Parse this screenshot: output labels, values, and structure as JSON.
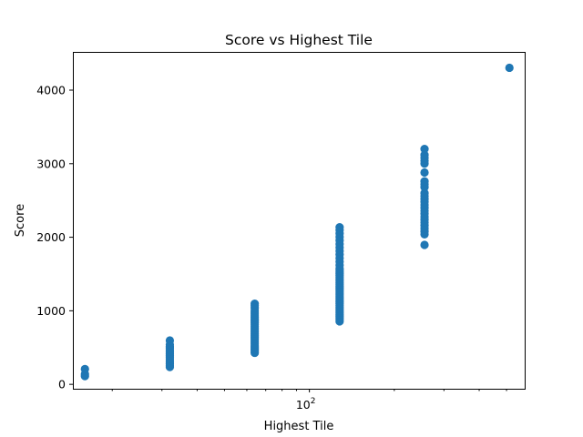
{
  "chart_data": {
    "type": "scatter",
    "title": "Score vs Highest Tile",
    "xlabel": "Highest Tile",
    "ylabel": "Score",
    "x_scale": "log",
    "xlim": [
      14.5,
      580
    ],
    "ylim": [
      -60,
      4520
    ],
    "grid": false,
    "color": "#1f77b4",
    "y_ticks": [
      0,
      1000,
      2000,
      3000,
      4000
    ],
    "x_major_ticks": [
      {
        "value": 100,
        "label": "10",
        "exp": "2"
      }
    ],
    "x_minor_ticks": [
      20,
      30,
      40,
      50,
      60,
      70,
      80,
      90,
      200,
      300,
      400,
      500
    ],
    "points": [
      {
        "x": 16,
        "y": 112
      },
      {
        "x": 16,
        "y": 140
      },
      {
        "x": 16,
        "y": 208
      },
      {
        "x": 32,
        "y": 236
      },
      {
        "x": 32,
        "y": 256
      },
      {
        "x": 32,
        "y": 278
      },
      {
        "x": 32,
        "y": 300
      },
      {
        "x": 32,
        "y": 324
      },
      {
        "x": 32,
        "y": 348
      },
      {
        "x": 32,
        "y": 372
      },
      {
        "x": 32,
        "y": 396
      },
      {
        "x": 32,
        "y": 420
      },
      {
        "x": 32,
        "y": 444
      },
      {
        "x": 32,
        "y": 468
      },
      {
        "x": 32,
        "y": 492
      },
      {
        "x": 32,
        "y": 516
      },
      {
        "x": 32,
        "y": 540
      },
      {
        "x": 32,
        "y": 596
      },
      {
        "x": 64,
        "y": 428
      },
      {
        "x": 64,
        "y": 452
      },
      {
        "x": 64,
        "y": 476
      },
      {
        "x": 64,
        "y": 500
      },
      {
        "x": 64,
        "y": 524
      },
      {
        "x": 64,
        "y": 548
      },
      {
        "x": 64,
        "y": 572
      },
      {
        "x": 64,
        "y": 596
      },
      {
        "x": 64,
        "y": 620
      },
      {
        "x": 64,
        "y": 644
      },
      {
        "x": 64,
        "y": 668
      },
      {
        "x": 64,
        "y": 692
      },
      {
        "x": 64,
        "y": 716
      },
      {
        "x": 64,
        "y": 740
      },
      {
        "x": 64,
        "y": 764
      },
      {
        "x": 64,
        "y": 788
      },
      {
        "x": 64,
        "y": 812
      },
      {
        "x": 64,
        "y": 836
      },
      {
        "x": 64,
        "y": 860
      },
      {
        "x": 64,
        "y": 884
      },
      {
        "x": 64,
        "y": 908
      },
      {
        "x": 64,
        "y": 932
      },
      {
        "x": 64,
        "y": 956
      },
      {
        "x": 64,
        "y": 980
      },
      {
        "x": 64,
        "y": 1004
      },
      {
        "x": 64,
        "y": 1040
      },
      {
        "x": 64,
        "y": 1072
      },
      {
        "x": 64,
        "y": 1096
      },
      {
        "x": 128,
        "y": 856
      },
      {
        "x": 128,
        "y": 880
      },
      {
        "x": 128,
        "y": 904
      },
      {
        "x": 128,
        "y": 928
      },
      {
        "x": 128,
        "y": 952
      },
      {
        "x": 128,
        "y": 976
      },
      {
        "x": 128,
        "y": 1000
      },
      {
        "x": 128,
        "y": 1024
      },
      {
        "x": 128,
        "y": 1048
      },
      {
        "x": 128,
        "y": 1072
      },
      {
        "x": 128,
        "y": 1096
      },
      {
        "x": 128,
        "y": 1120
      },
      {
        "x": 128,
        "y": 1144
      },
      {
        "x": 128,
        "y": 1168
      },
      {
        "x": 128,
        "y": 1192
      },
      {
        "x": 128,
        "y": 1216
      },
      {
        "x": 128,
        "y": 1240
      },
      {
        "x": 128,
        "y": 1264
      },
      {
        "x": 128,
        "y": 1288
      },
      {
        "x": 128,
        "y": 1312
      },
      {
        "x": 128,
        "y": 1336
      },
      {
        "x": 128,
        "y": 1360
      },
      {
        "x": 128,
        "y": 1384
      },
      {
        "x": 128,
        "y": 1408
      },
      {
        "x": 128,
        "y": 1432
      },
      {
        "x": 128,
        "y": 1456
      },
      {
        "x": 128,
        "y": 1480
      },
      {
        "x": 128,
        "y": 1504
      },
      {
        "x": 128,
        "y": 1528
      },
      {
        "x": 128,
        "y": 1552
      },
      {
        "x": 128,
        "y": 1576
      },
      {
        "x": 128,
        "y": 1620
      },
      {
        "x": 128,
        "y": 1668
      },
      {
        "x": 128,
        "y": 1716
      },
      {
        "x": 128,
        "y": 1764
      },
      {
        "x": 128,
        "y": 1812
      },
      {
        "x": 128,
        "y": 1860
      },
      {
        "x": 128,
        "y": 1908
      },
      {
        "x": 128,
        "y": 1956
      },
      {
        "x": 128,
        "y": 2004
      },
      {
        "x": 128,
        "y": 2052
      },
      {
        "x": 128,
        "y": 2100
      },
      {
        "x": 128,
        "y": 2136
      },
      {
        "x": 256,
        "y": 1896
      },
      {
        "x": 256,
        "y": 2040
      },
      {
        "x": 256,
        "y": 2080
      },
      {
        "x": 256,
        "y": 2120
      },
      {
        "x": 256,
        "y": 2160
      },
      {
        "x": 256,
        "y": 2200
      },
      {
        "x": 256,
        "y": 2240
      },
      {
        "x": 256,
        "y": 2280
      },
      {
        "x": 256,
        "y": 2320
      },
      {
        "x": 256,
        "y": 2360
      },
      {
        "x": 256,
        "y": 2400
      },
      {
        "x": 256,
        "y": 2440
      },
      {
        "x": 256,
        "y": 2480
      },
      {
        "x": 256,
        "y": 2520
      },
      {
        "x": 256,
        "y": 2560
      },
      {
        "x": 256,
        "y": 2600
      },
      {
        "x": 256,
        "y": 2680
      },
      {
        "x": 256,
        "y": 2720
      },
      {
        "x": 256,
        "y": 2760
      },
      {
        "x": 256,
        "y": 2880
      },
      {
        "x": 256,
        "y": 3000
      },
      {
        "x": 256,
        "y": 3040
      },
      {
        "x": 256,
        "y": 3080
      },
      {
        "x": 256,
        "y": 3120
      },
      {
        "x": 256,
        "y": 3200
      },
      {
        "x": 512,
        "y": 4304
      }
    ]
  }
}
